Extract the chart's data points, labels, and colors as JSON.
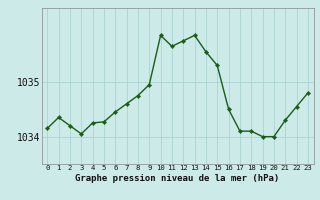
{
  "x": [
    0,
    1,
    2,
    3,
    4,
    5,
    6,
    7,
    8,
    9,
    10,
    11,
    12,
    13,
    14,
    15,
    16,
    17,
    18,
    19,
    20,
    21,
    22,
    23
  ],
  "y": [
    1034.15,
    1034.35,
    1034.2,
    1034.05,
    1034.25,
    1034.27,
    1034.45,
    1034.6,
    1034.75,
    1034.95,
    1035.85,
    1035.65,
    1035.75,
    1035.85,
    1035.55,
    1035.3,
    1034.5,
    1034.1,
    1034.1,
    1034.0,
    1034.0,
    1034.3,
    1034.55,
    1034.8
  ],
  "bg_color": "#cceae8",
  "line_color": "#1a5c1a",
  "marker_color": "#1a5c1a",
  "grid_color": "#aad4d0",
  "xlabel": "Graphe pression niveau de la mer (hPa)",
  "xlabel_color": "#111111",
  "tick_color": "#111111",
  "ylim": [
    1033.5,
    1036.35
  ],
  "yticks": [
    1034,
    1035
  ],
  "xticks": [
    0,
    1,
    2,
    3,
    4,
    5,
    6,
    7,
    8,
    9,
    10,
    11,
    12,
    13,
    14,
    15,
    16,
    17,
    18,
    19,
    20,
    21,
    22,
    23
  ],
  "xtick_labels": [
    "0",
    "1",
    "2",
    "3",
    "4",
    "5",
    "6",
    "7",
    "8",
    "9",
    "10",
    "11",
    "12",
    "13",
    "14",
    "15",
    "16",
    "17",
    "18",
    "19",
    "20",
    "21",
    "22",
    "23"
  ],
  "spine_color": "#888888"
}
